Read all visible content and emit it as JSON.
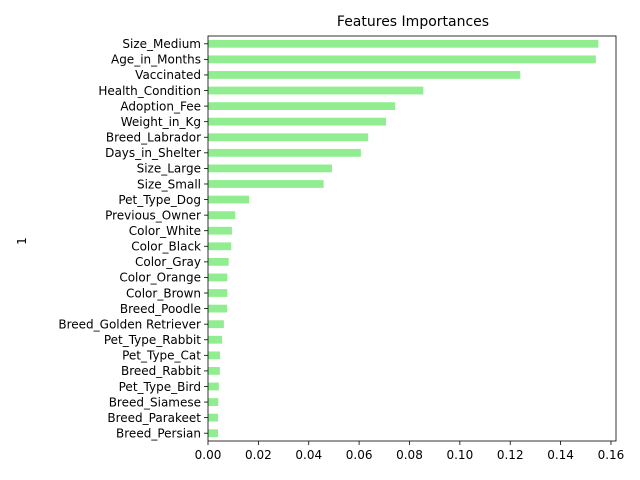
{
  "chart_data": {
    "type": "bar",
    "orientation": "horizontal",
    "title": "Features Importances",
    "xlabel": "",
    "ylabel": "1",
    "xlim": [
      0,
      0.162
    ],
    "x_ticks": [
      "0.00",
      "0.02",
      "0.04",
      "0.06",
      "0.08",
      "0.10",
      "0.12",
      "0.14",
      "0.16"
    ],
    "bar_color": "#90ee90",
    "grid": false,
    "categories": [
      "Size_Medium",
      "Age_in_Months",
      "Vaccinated",
      "Health_Condition",
      "Adoption_Fee",
      "Weight_in_Kg",
      "Breed_Labrador",
      "Days_in_Shelter",
      "Size_Large",
      "Size_Small",
      "Pet_Type_Dog",
      "Previous_Owner",
      "Color_White",
      "Color_Black",
      "Color_Gray",
      "Color_Orange",
      "Color_Brown",
      "Breed_Poodle",
      "Breed_Golden Retriever",
      "Pet_Type_Rabbit",
      "Pet_Type_Cat",
      "Breed_Rabbit",
      "Pet_Type_Bird",
      "Breed_Siamese",
      "Breed_Parakeet",
      "Breed_Persian"
    ],
    "values": [
      0.155,
      0.154,
      0.124,
      0.0855,
      0.0743,
      0.0707,
      0.0636,
      0.0607,
      0.0492,
      0.0459,
      0.0163,
      0.0108,
      0.0095,
      0.0092,
      0.0082,
      0.0077,
      0.0077,
      0.0076,
      0.0063,
      0.0056,
      0.0048,
      0.0047,
      0.0043,
      0.0041,
      0.004,
      0.004
    ]
  }
}
